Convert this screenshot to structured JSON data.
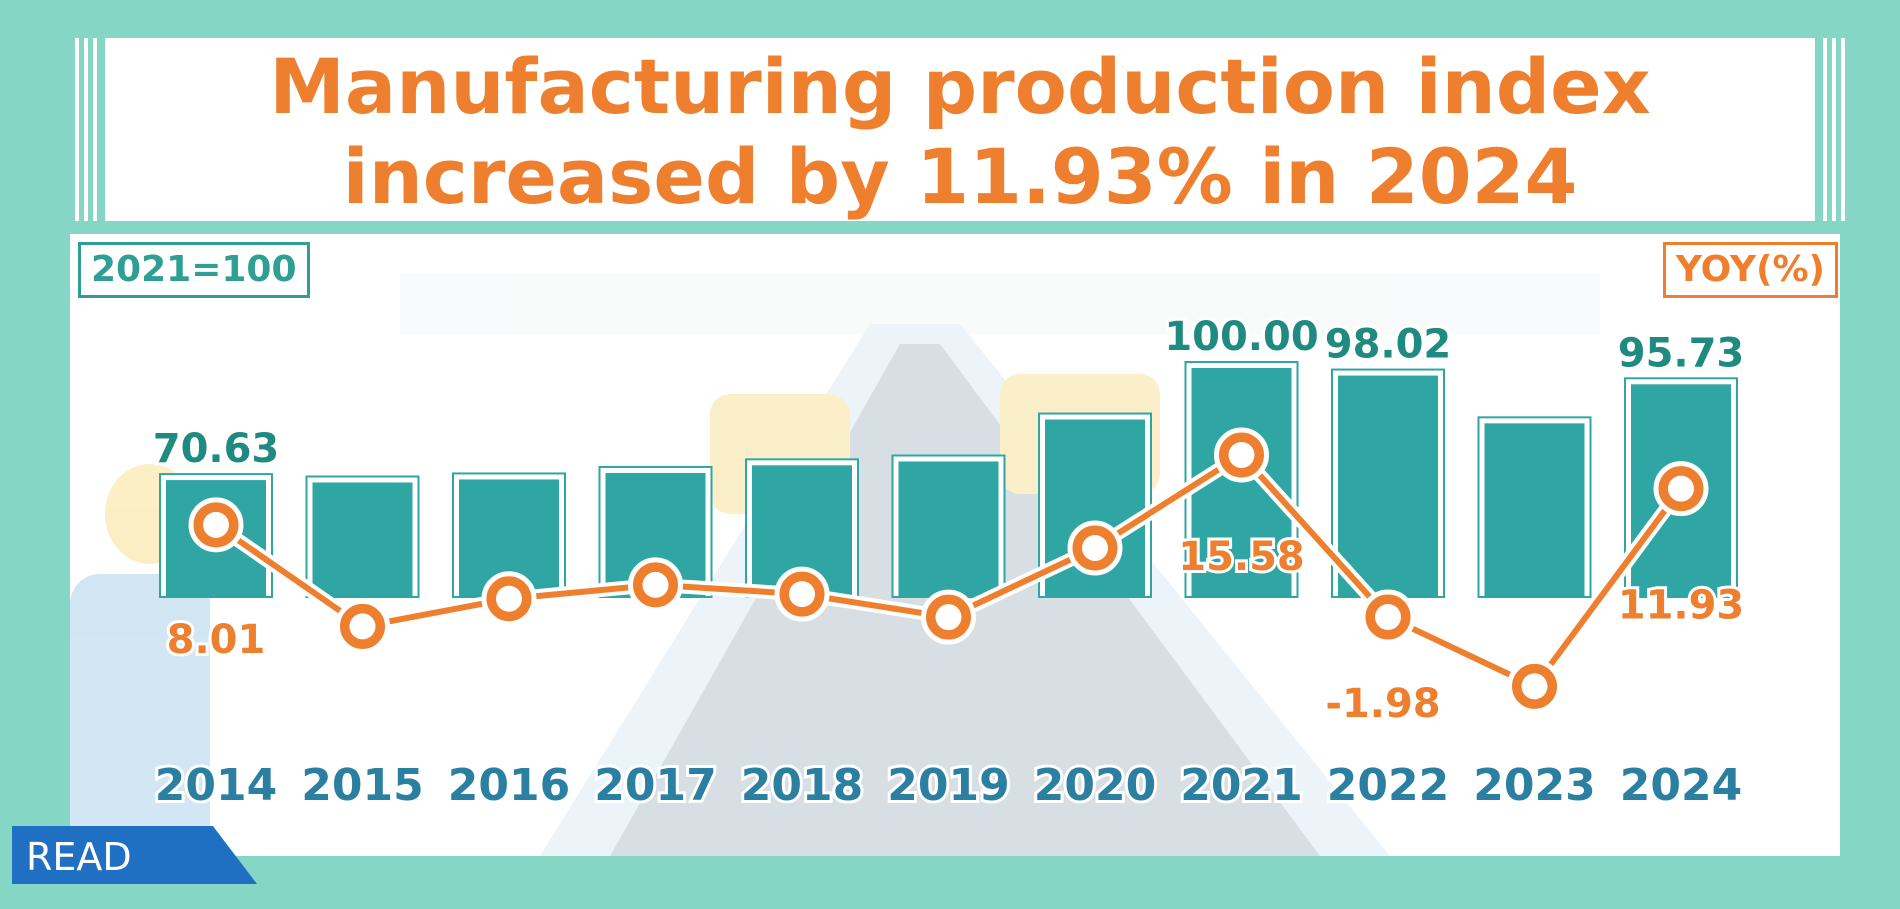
{
  "title": "Manufacturing production index increased by 11.93% in  2024",
  "legend_left": "2021=100",
  "legend_right": "YOY(%)",
  "read_label": "READ",
  "colors": {
    "bar": "#2fa6a3",
    "line": "#ee7f2e",
    "index_label": "#1f8a80",
    "yoy_label": "#ee7f2e",
    "year_label": "#2b7fa0"
  },
  "chart_data": {
    "type": "bar",
    "categories": [
      "2014",
      "2015",
      "2016",
      "2017",
      "2018",
      "2019",
      "2020",
      "2021",
      "2022",
      "2023",
      "2024"
    ],
    "series": [
      {
        "name": "2021=100",
        "type": "bar",
        "values": [
          70.63,
          70.0,
          70.8,
          72.5,
          74.5,
          75.5,
          86.5,
          100.0,
          98.02,
          85.5,
          95.73
        ]
      },
      {
        "name": "YOY(%)",
        "type": "line",
        "values": [
          8.01,
          -3.0,
          0.0,
          1.5,
          0.5,
          -2.0,
          5.5,
          15.58,
          -1.98,
          -9.5,
          11.93
        ]
      }
    ],
    "index_labels": [
      {
        "category": "2014",
        "text": "70.63"
      },
      {
        "category": "2021",
        "text": "100.00"
      },
      {
        "category": "2022",
        "text": "98.02"
      },
      {
        "category": "2024",
        "text": "95.73"
      }
    ],
    "yoy_labels": [
      {
        "category": "2014",
        "text": "8.01"
      },
      {
        "category": "2021",
        "text": "15.58"
      },
      {
        "category": "2022",
        "text": "-1.98"
      },
      {
        "category": "2024",
        "text": "11.93"
      }
    ]
  }
}
